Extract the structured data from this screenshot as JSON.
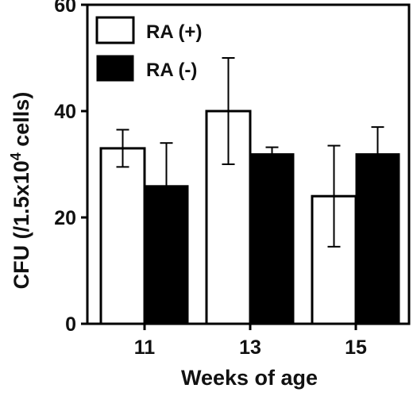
{
  "chart_data": {
    "type": "bar",
    "title": "",
    "xlabel": "Weeks of age",
    "ylabel": {
      "prefix": "CFU (/1.5x10",
      "exponent": "4",
      "suffix": " cells)"
    },
    "categories": [
      "11",
      "13",
      "15"
    ],
    "ylim": [
      0,
      60
    ],
    "yticks": [
      "0",
      "20",
      "40",
      "60"
    ],
    "grid": false,
    "legend_position": "top-left",
    "series": [
      {
        "name": "RA (+)",
        "color": "#ffffff",
        "values": [
          33,
          40,
          24
        ],
        "error": [
          3.5,
          10,
          9.5
        ]
      },
      {
        "name": "RA (-)",
        "color": "#000000",
        "values": [
          26,
          32,
          32
        ],
        "error": [
          8,
          1.2,
          5
        ]
      }
    ]
  }
}
